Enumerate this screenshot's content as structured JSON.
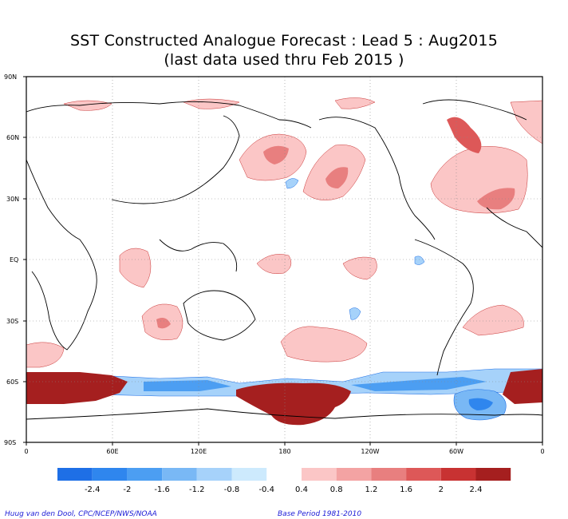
{
  "title": "SST Constructed Analogue Forecast : Lead 5 : Aug2015",
  "subtitle": "(last data used thru Feb 2015 )",
  "lat_labels": [
    "90N",
    "60N",
    "30N",
    "EQ",
    "30S",
    "60S",
    "90S"
  ],
  "lon_labels": [
    "0",
    "60E",
    "120E",
    "180",
    "120W",
    "60W",
    "0"
  ],
  "colorbar": {
    "neg_colors": [
      "#1e6fe6",
      "#2f86ee",
      "#4c9ef2",
      "#79b8f5",
      "#a6d2fa",
      "#cdeafd"
    ],
    "neg_labels": [
      "-2.4",
      "-2",
      "-1.6",
      "-1.2",
      "-0.8",
      "-0.4"
    ],
    "pos_colors": [
      "#fbc6c6",
      "#f3a3a3",
      "#e87f7f",
      "#dd5858",
      "#c83232",
      "#a51f1f"
    ],
    "pos_labels": [
      "0.4",
      "0.8",
      "1.2",
      "1.6",
      "2",
      "2.4"
    ]
  },
  "footer_left": "Huug van den Dool, CPC/NCEP/NWS/NOAA",
  "footer_right": "Base Period 1981-2010"
}
